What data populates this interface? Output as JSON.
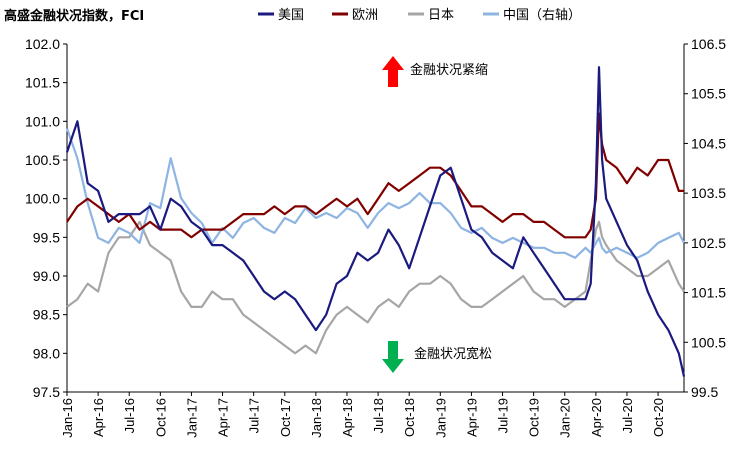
{
  "chart_data": {
    "type": "line",
    "title": "高盛金融状况指数，FCI",
    "xlabel": "",
    "ylabel": "",
    "ylim_left": [
      97.5,
      102.0
    ],
    "ylim_right": [
      99.5,
      106.5
    ],
    "left_ticks": [
      "97.5",
      "98.0",
      "98.5",
      "99.0",
      "99.5",
      "100.0",
      "100.5",
      "101.0",
      "101.5",
      "102.0"
    ],
    "right_ticks": [
      "99.5",
      "100.5",
      "101.5",
      "102.5",
      "103.5",
      "104.5",
      "105.5",
      "106.5"
    ],
    "x_ticks": [
      "Jan-16",
      "Apr-16",
      "Jul-16",
      "Oct-16",
      "Jan-17",
      "Apr-17",
      "Jul-17",
      "Oct-17",
      "Jan-18",
      "Apr-18",
      "Jul-18",
      "Oct-18",
      "Jan-19",
      "Apr-19",
      "Jul-19",
      "Oct-19",
      "Jan-20",
      "Apr-20",
      "Jul-20",
      "Oct-20"
    ],
    "legend_position": "top",
    "grid": false,
    "annotations": [
      {
        "text": "金融状况紧缩",
        "arrow": "up",
        "color": "#ff0000"
      },
      {
        "text": "金融状况宽松",
        "arrow": "down",
        "color": "#00b050"
      }
    ],
    "series": [
      {
        "name": "美国",
        "axis": "left",
        "color": "#1a1a80",
        "x": [
          0,
          1,
          2,
          3,
          4,
          5,
          6,
          7,
          8,
          9,
          10,
          11,
          12,
          13,
          14,
          15,
          16,
          17,
          18,
          19,
          20,
          21,
          22,
          23,
          24,
          25,
          26,
          27,
          28,
          29,
          30,
          31,
          32,
          33,
          34,
          35,
          36,
          37,
          38,
          39,
          40,
          41,
          42,
          43,
          44,
          45,
          46,
          47,
          48,
          49,
          50,
          50.5,
          51,
          51.3,
          51.6,
          52,
          53,
          54,
          55,
          56,
          57,
          58,
          59,
          59.5
        ],
        "values": [
          100.6,
          101.0,
          100.2,
          100.1,
          99.7,
          99.8,
          99.8,
          99.8,
          99.9,
          99.6,
          100.0,
          99.9,
          99.7,
          99.6,
          99.4,
          99.4,
          99.3,
          99.2,
          99.0,
          98.8,
          98.7,
          98.8,
          98.7,
          98.5,
          98.3,
          98.5,
          98.9,
          99.0,
          99.3,
          99.2,
          99.3,
          99.6,
          99.4,
          99.1,
          99.5,
          99.9,
          100.3,
          100.4,
          100.0,
          99.6,
          99.5,
          99.3,
          99.2,
          99.1,
          99.5,
          99.3,
          99.1,
          98.9,
          98.7,
          98.7,
          98.7,
          98.9,
          100.2,
          101.7,
          100.5,
          100.0,
          99.7,
          99.4,
          99.2,
          98.8,
          98.5,
          98.3,
          98.0,
          97.7
        ]
      },
      {
        "name": "欧洲",
        "axis": "left",
        "color": "#800000",
        "x": [
          0,
          1,
          2,
          3,
          4,
          5,
          6,
          7,
          8,
          9,
          10,
          11,
          12,
          13,
          14,
          15,
          16,
          17,
          18,
          19,
          20,
          21,
          22,
          23,
          24,
          25,
          26,
          27,
          28,
          29,
          30,
          31,
          32,
          33,
          34,
          35,
          36,
          37,
          38,
          39,
          40,
          41,
          42,
          43,
          44,
          45,
          46,
          47,
          48,
          49,
          50,
          50.5,
          51,
          51.3,
          51.6,
          52,
          53,
          54,
          55,
          56,
          57,
          58,
          59,
          59.5
        ],
        "values": [
          99.7,
          99.9,
          100.0,
          99.9,
          99.8,
          99.7,
          99.8,
          99.6,
          99.7,
          99.6,
          99.6,
          99.6,
          99.5,
          99.6,
          99.6,
          99.6,
          99.7,
          99.8,
          99.8,
          99.8,
          99.9,
          99.8,
          99.9,
          99.9,
          99.8,
          99.9,
          100.0,
          99.9,
          100.0,
          99.8,
          100.0,
          100.2,
          100.1,
          100.2,
          100.3,
          100.4,
          100.4,
          100.3,
          100.1,
          99.9,
          99.9,
          99.8,
          99.7,
          99.8,
          99.8,
          99.7,
          99.7,
          99.6,
          99.5,
          99.5,
          99.5,
          99.6,
          100.0,
          101.1,
          100.7,
          100.5,
          100.4,
          100.2,
          100.4,
          100.3,
          100.5,
          100.5,
          100.1,
          100.1
        ]
      },
      {
        "name": "日本",
        "axis": "left",
        "color": "#a6a6a6",
        "x": [
          0,
          1,
          2,
          3,
          4,
          5,
          6,
          7,
          8,
          9,
          10,
          11,
          12,
          13,
          14,
          15,
          16,
          17,
          18,
          19,
          20,
          21,
          22,
          23,
          24,
          25,
          26,
          27,
          28,
          29,
          30,
          31,
          32,
          33,
          34,
          35,
          36,
          37,
          38,
          39,
          40,
          41,
          42,
          43,
          44,
          45,
          46,
          47,
          48,
          49,
          50,
          50.5,
          51,
          51.3,
          51.6,
          52,
          53,
          54,
          55,
          56,
          57,
          58,
          59,
          59.5
        ],
        "values": [
          98.6,
          98.7,
          98.9,
          98.8,
          99.3,
          99.5,
          99.5,
          99.7,
          99.4,
          99.3,
          99.2,
          98.8,
          98.6,
          98.6,
          98.8,
          98.7,
          98.7,
          98.5,
          98.4,
          98.3,
          98.2,
          98.1,
          98.0,
          98.1,
          98.0,
          98.3,
          98.5,
          98.6,
          98.5,
          98.4,
          98.6,
          98.7,
          98.6,
          98.8,
          98.9,
          98.9,
          99.0,
          98.9,
          98.7,
          98.6,
          98.6,
          98.7,
          98.8,
          98.9,
          99.0,
          98.8,
          98.7,
          98.7,
          98.6,
          98.7,
          98.8,
          99.2,
          99.6,
          99.7,
          99.5,
          99.4,
          99.2,
          99.1,
          99.0,
          99.0,
          99.1,
          99.2,
          98.9,
          98.8
        ]
      },
      {
        "name": "中国（右轴）",
        "axis": "right",
        "color": "#8db4e2",
        "x": [
          0,
          1,
          2,
          3,
          4,
          5,
          6,
          7,
          8,
          9,
          10,
          11,
          12,
          13,
          14,
          15,
          16,
          17,
          18,
          19,
          20,
          21,
          22,
          23,
          24,
          25,
          26,
          27,
          28,
          29,
          30,
          31,
          32,
          33,
          34,
          35,
          36,
          37,
          38,
          39,
          40,
          41,
          42,
          43,
          44,
          45,
          46,
          47,
          48,
          49,
          50,
          50.5,
          51,
          51.3,
          51.6,
          52,
          53,
          54,
          55,
          56,
          57,
          58,
          59,
          59.5
        ],
        "values": [
          104.8,
          104.2,
          103.3,
          102.6,
          102.5,
          102.8,
          102.7,
          102.5,
          103.3,
          103.2,
          104.2,
          103.4,
          103.1,
          102.9,
          102.5,
          102.8,
          102.6,
          102.9,
          103.0,
          102.8,
          102.7,
          103.0,
          102.9,
          103.2,
          103.0,
          103.1,
          103.0,
          103.2,
          103.1,
          102.8,
          103.1,
          103.3,
          103.2,
          103.3,
          103.5,
          103.3,
          103.3,
          103.1,
          102.8,
          102.7,
          102.8,
          102.6,
          102.5,
          102.6,
          102.5,
          102.4,
          102.4,
          102.3,
          102.3,
          102.2,
          102.4,
          102.3,
          102.5,
          102.6,
          102.4,
          102.3,
          102.4,
          102.3,
          102.2,
          102.3,
          102.5,
          102.6,
          102.7,
          102.5
        ]
      }
    ]
  }
}
